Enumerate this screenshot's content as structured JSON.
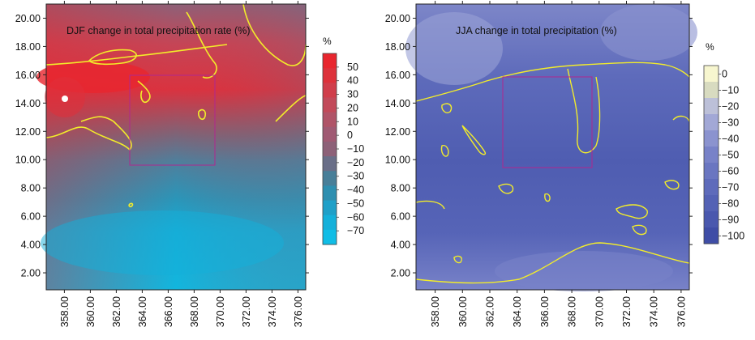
{
  "panels": [
    {
      "title": "DJF change in total precipitation rate (%)",
      "y_ticks": [
        "2.00",
        "4.00",
        "6.00",
        "8.00",
        "10.00",
        "12.00",
        "14.00",
        "16.00",
        "18.00",
        "20.00"
      ],
      "x_ticks": [
        "358.00",
        "360.00",
        "362.00",
        "364.00",
        "366.00",
        "368.00",
        "370.00",
        "372.00",
        "374.00",
        "376.00"
      ],
      "colorbar": {
        "unit": "%",
        "labels": [
          "50",
          "40",
          "30",
          "20",
          "10",
          "0",
          "−10",
          "−20",
          "−30",
          "−40",
          "−50",
          "−60",
          "−70"
        ],
        "colors": [
          "#e8262e",
          "#dd323b",
          "#d03e4b",
          "#c24a5a",
          "#b05468",
          "#a05a73",
          "#8d6178",
          "#6a6f88",
          "#487f99",
          "#2e8fb0",
          "#1fa0c8",
          "#14b0da",
          "#10bde6"
        ]
      }
    },
    {
      "title": "JJA change in total precipitation (%)",
      "y_ticks": [
        "2.00",
        "4.00",
        "6.00",
        "8.00",
        "10.00",
        "12.00",
        "14.00",
        "16.00",
        "18.00",
        "20.00"
      ],
      "x_ticks": [
        "358.00",
        "360.00",
        "362.00",
        "364.00",
        "366.00",
        "368.00",
        "370.00",
        "372.00",
        "374.00",
        "376.00"
      ],
      "colorbar": {
        "unit": "%",
        "labels": [
          "0",
          "−10",
          "−20",
          "−30",
          "−40",
          "−50",
          "−60",
          "−70",
          "−80",
          "−90",
          "−100"
        ],
        "colors": [
          "#f7f6cf",
          "#d8dbc0",
          "#bcc0d8",
          "#a2a8d6",
          "#8b93cf",
          "#7882c8",
          "#6a76c1",
          "#5e6bbb",
          "#5462b5",
          "#4a58ae",
          "#3f4da6"
        ]
      }
    }
  ],
  "colors": {
    "contour": "#f2ec2a",
    "box": "#b0278f"
  }
}
